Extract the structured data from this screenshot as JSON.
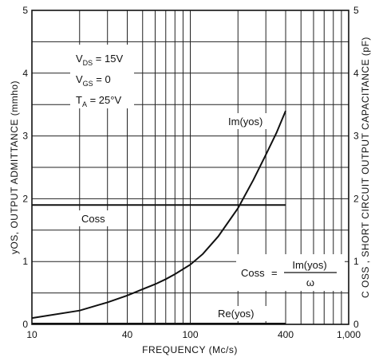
{
  "chart_data": {
    "type": "line",
    "x_scale": "log",
    "xlim": [
      10,
      1000
    ],
    "ylim": [
      0,
      5
    ],
    "grid": true,
    "xlabel": "FREQUENCY (Mc/s)",
    "ylabel": "yOS, OUTPUT ADMITTANCE (mmho)",
    "y2label": "C OSS , SHORT CIRCUIT OUTPUT CAPACITANCE (pF)",
    "x_tick_labels": [
      {
        "value": 10,
        "label": "10"
      },
      {
        "value": 40,
        "label": "40"
      },
      {
        "value": 100,
        "label": "100"
      },
      {
        "value": 400,
        "label": "400"
      },
      {
        "value": 1000,
        "label": "1,000"
      }
    ],
    "y_tick_labels": [
      "0",
      "1",
      "2",
      "3",
      "4",
      "5"
    ],
    "y2_tick_labels": [
      "0",
      "1",
      "2",
      "3",
      "4",
      "5"
    ],
    "conditions": [
      {
        "text": "V",
        "sub": "DS",
        "rest": " = 15V"
      },
      {
        "text": "V",
        "sub": "GS",
        "rest": " = 0"
      },
      {
        "text": "T",
        "sub": "A",
        "rest": " = 25°V"
      }
    ],
    "series": [
      {
        "name": "Im(yos)",
        "x": [
          10,
          20,
          30,
          40,
          50,
          60,
          70,
          80,
          100,
          120,
          150,
          200,
          250,
          300,
          350,
          400
        ],
        "y": [
          0.1,
          0.22,
          0.35,
          0.46,
          0.56,
          0.64,
          0.72,
          0.8,
          0.95,
          1.12,
          1.4,
          1.85,
          2.3,
          2.7,
          3.05,
          3.4
        ]
      },
      {
        "name": "Coss",
        "x": [
          10,
          400
        ],
        "y": [
          1.9,
          1.9
        ]
      },
      {
        "name": "Re(yos)",
        "x": [
          10,
          400
        ],
        "y": [
          0,
          0
        ]
      }
    ],
    "labels": {
      "im": "Im(yos)",
      "coss": "Coss",
      "re": "Re(yos)",
      "formula_lhs": "Coss",
      "formula_num": "Im(yos)",
      "formula_den": "ω"
    }
  }
}
